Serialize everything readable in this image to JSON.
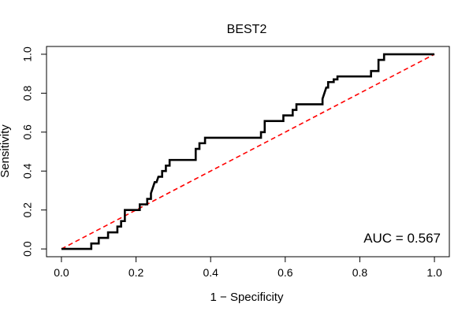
{
  "chart_data": {
    "type": "line",
    "title": "BEST2",
    "xlabel": "1 − Specificity",
    "ylabel": "Sensitivity",
    "xlim": [
      -0.04,
      1.04
    ],
    "ylim": [
      -0.04,
      1.04
    ],
    "x_ticks": [
      "0.0",
      "0.2",
      "0.4",
      "0.6",
      "0.8",
      "1.0"
    ],
    "y_ticks": [
      "0.0",
      "0.2",
      "0.4",
      "0.6",
      "0.8",
      "1.0"
    ],
    "grid": false,
    "annotation": "AUC = 0.567",
    "colors": {
      "roc": "#000000",
      "reference": "#ff0000",
      "axis": "#000000"
    },
    "series": [
      {
        "x": [
          0.0,
          0.08,
          0.08,
          0.1,
          0.1,
          0.125,
          0.125,
          0.15,
          0.15,
          0.16,
          0.16,
          0.17,
          0.17,
          0.2,
          0.21,
          0.21,
          0.23,
          0.23,
          0.24,
          0.24,
          0.245,
          0.25,
          0.255,
          0.26,
          0.27,
          0.27,
          0.28,
          0.28,
          0.29,
          0.29,
          0.36,
          0.36,
          0.37,
          0.37,
          0.385,
          0.385,
          0.415,
          0.415,
          0.535,
          0.535,
          0.545,
          0.545,
          0.595,
          0.595,
          0.62,
          0.62,
          0.63,
          0.63,
          0.7,
          0.7,
          0.705,
          0.71,
          0.715,
          0.715,
          0.73,
          0.73,
          0.74,
          0.74,
          0.83,
          0.83,
          0.85,
          0.85,
          0.865,
          0.865,
          1.0
        ],
        "y": [
          0.0,
          0.0,
          0.028,
          0.028,
          0.057,
          0.057,
          0.085,
          0.085,
          0.115,
          0.115,
          0.143,
          0.143,
          0.2,
          0.2,
          0.2,
          0.229,
          0.229,
          0.257,
          0.257,
          0.286,
          0.314,
          0.343,
          0.343,
          0.371,
          0.371,
          0.4,
          0.4,
          0.428,
          0.428,
          0.457,
          0.457,
          0.514,
          0.514,
          0.543,
          0.543,
          0.571,
          0.571,
          0.571,
          0.571,
          0.6,
          0.6,
          0.657,
          0.657,
          0.686,
          0.686,
          0.714,
          0.714,
          0.743,
          0.743,
          0.771,
          0.8,
          0.829,
          0.829,
          0.857,
          0.857,
          0.871,
          0.871,
          0.886,
          0.886,
          0.914,
          0.914,
          0.971,
          0.971,
          1.0,
          1.0
        ]
      }
    ],
    "reference_line": {
      "x": [
        0.0,
        1.0
      ],
      "y": [
        0.0,
        1.0
      ]
    }
  }
}
